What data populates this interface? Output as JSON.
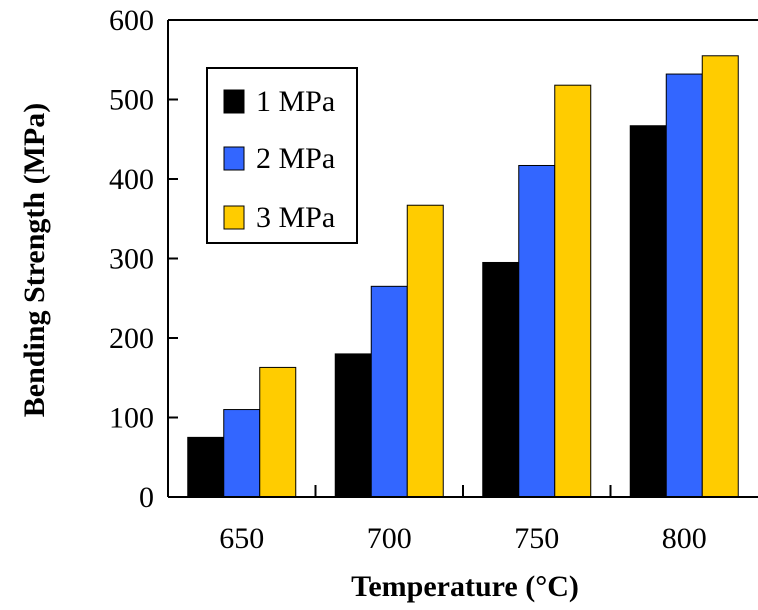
{
  "chart_data": {
    "type": "bar",
    "categories": [
      "650",
      "700",
      "750",
      "800"
    ],
    "series": [
      {
        "name": "1 MPa",
        "color": "#000000",
        "values": [
          75,
          180,
          295,
          467
        ]
      },
      {
        "name": "2 MPa",
        "color": "#3366ff",
        "values": [
          110,
          265,
          417,
          532
        ]
      },
      {
        "name": "3 MPa",
        "color": "#ffcc00",
        "values": [
          163,
          367,
          518,
          555
        ]
      }
    ],
    "xlabel": "Temperature (°C)",
    "ylabel": "Bending Strength (MPa)",
    "ylim": [
      0,
      600
    ],
    "yticks": [
      "0",
      "100",
      "200",
      "300",
      "400",
      "500",
      "600"
    ],
    "grid": false,
    "legend_position": "top-left"
  }
}
